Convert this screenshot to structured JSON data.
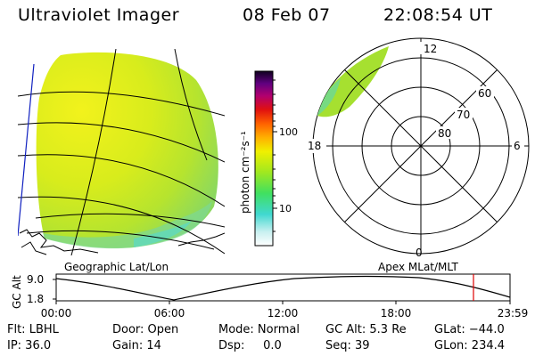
{
  "header": {
    "title": "Ultraviolet Imager",
    "date": "08 Feb 07",
    "time": "22:08:54 UT"
  },
  "colorbar": {
    "ticks": [
      "100",
      "10"
    ],
    "label": "photon cm⁻²s⁻¹"
  },
  "panels": {
    "geographic_label": "Geographic Lat/Lon",
    "apex_label": "Apex MLat/MLT"
  },
  "polar_plot": {
    "mlt_labels": [
      "12",
      "18",
      "6",
      "0"
    ],
    "mlat_labels": [
      "60",
      "70",
      "80"
    ]
  },
  "altitude_plot": {
    "axis_label": "GC Alt",
    "y_ticks": [
      "9.0",
      "1.8"
    ],
    "x_ticks": [
      "00:00",
      "06:00",
      "12:00",
      "18:00",
      "23:59"
    ],
    "marker_color": "#dd0000"
  },
  "info": {
    "filter": "Flt: LBHL",
    "ip": "IP: 36.0",
    "door": "Door: Open",
    "gain": "Gain: 14",
    "mode": "Mode: Normal",
    "dsp": "Dsp:     0.0",
    "gc_alt": "GC Alt: 5.3 Re",
    "seq": "Seq: 39",
    "glat": "GLat: −44.0",
    "glon": "GLon: 234.4"
  }
}
